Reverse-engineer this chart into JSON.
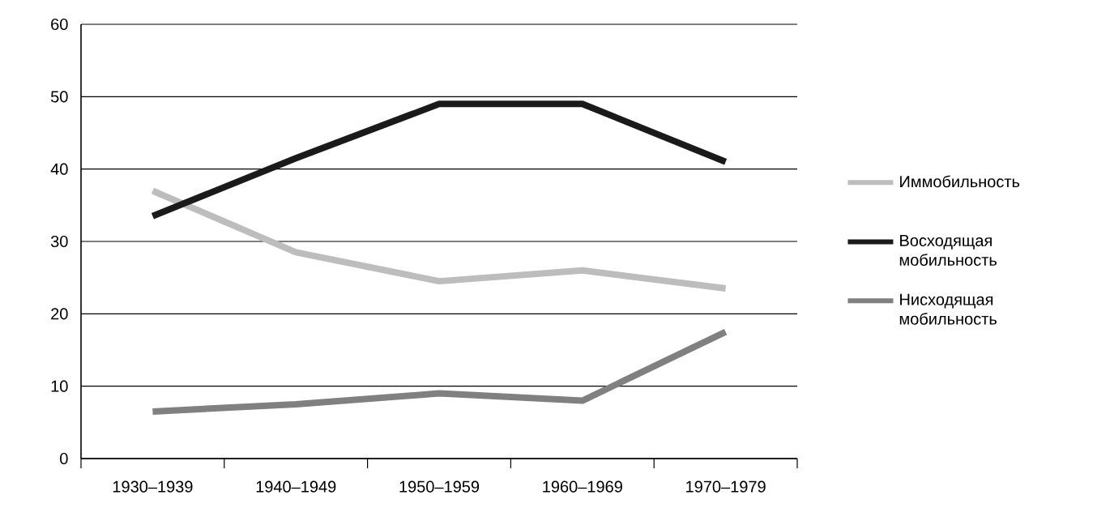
{
  "chart_data": {
    "type": "line",
    "categories": [
      "1930–1939",
      "1940–1949",
      "1950–1959",
      "1960–1969",
      "1970–1979"
    ],
    "series": [
      {
        "name": "Иммобильность",
        "color": "#bdbdbd",
        "values": [
          37,
          28.5,
          24.5,
          26,
          23.5
        ]
      },
      {
        "name": "Восходящая мобильность",
        "color": "#1a1a1a",
        "values": [
          33.5,
          41.5,
          49,
          49,
          41
        ]
      },
      {
        "name": "Нисходящая мобильность",
        "color": "#808080",
        "values": [
          6.5,
          7.5,
          9,
          8,
          17.5
        ]
      }
    ],
    "ylim": [
      0,
      60
    ],
    "yticks": [
      0,
      10,
      20,
      30,
      40,
      50,
      60
    ],
    "grid": "y",
    "legend": "right",
    "line_style": "solid",
    "marker": "none"
  }
}
